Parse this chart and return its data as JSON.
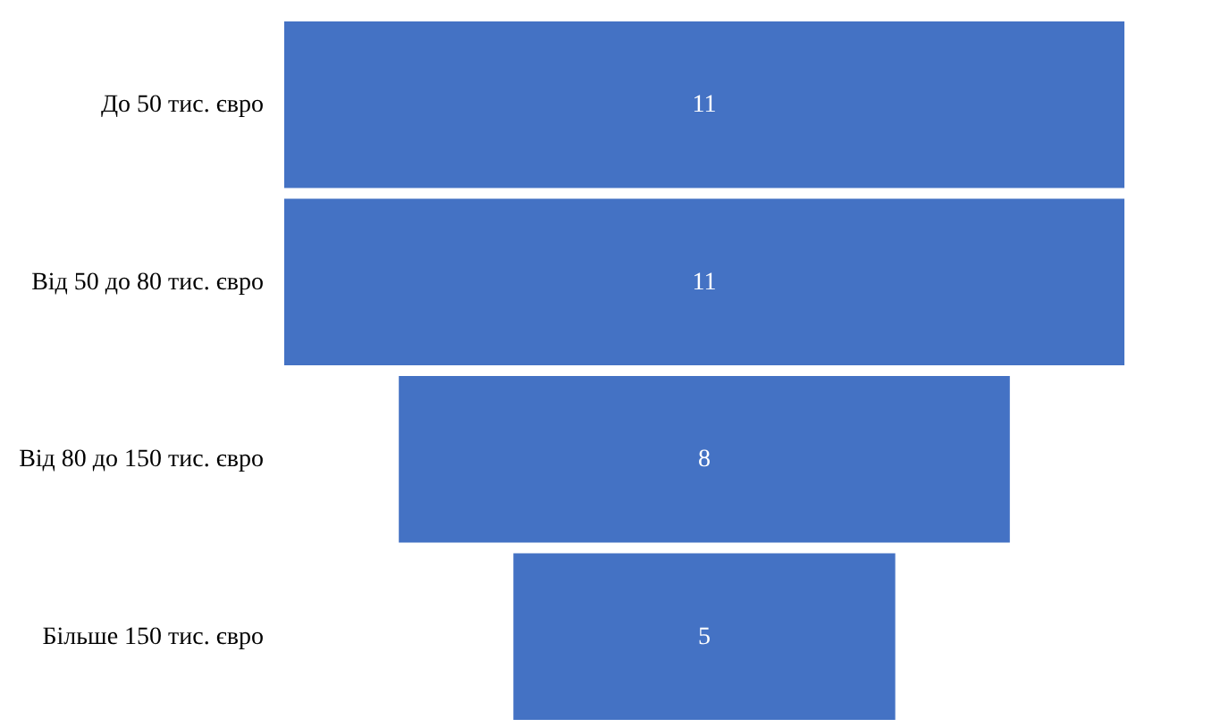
{
  "chart_data": {
    "type": "other",
    "categories": [
      "До 50 тис. євро",
      "Від 50 до 80 тис. євро",
      "Від 80 до 150 тис. євро",
      "Більше 150 тис. євро"
    ],
    "values": [
      11,
      11,
      8,
      5
    ],
    "color": "#4472c4",
    "data_labels": true
  }
}
